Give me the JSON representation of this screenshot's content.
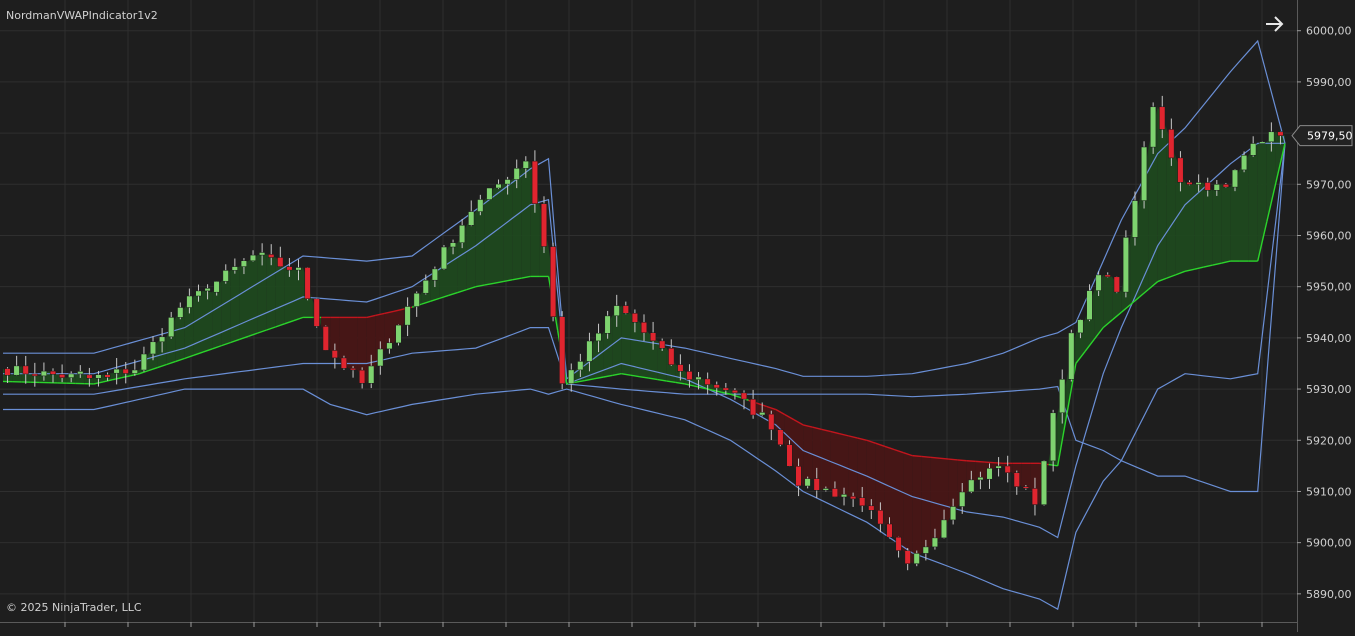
{
  "indicator_label": "NordmanVWAPIndicator1v2",
  "copyright": "© 2025 NinjaTrader, LLC",
  "icons": {
    "scroll_right": "arrow-right-icon"
  },
  "colors": {
    "background": "#1e1e1e",
    "grid": "#2f2f2f",
    "candle_up": "#7ed36f",
    "candle_down": "#e0252f",
    "wick": "#c8c8c8",
    "vwap_line_up": "#2bd42b",
    "vwap_line_down": "#c3151d",
    "band": "#6a8fd6",
    "fill_up": "#1e4a1e",
    "fill_down": "#4a1515",
    "price_label_border": "#8a8a8a"
  },
  "chart_data": {
    "type": "candlestick",
    "title": "",
    "y_axis": {
      "position": "right",
      "range": [
        5884.5,
        6006.0
      ],
      "ticks": [
        "6000,00",
        "5990,00",
        "5980,00",
        "5970,00",
        "5960,00",
        "5950,00",
        "5940,00",
        "5930,00",
        "5920,00",
        "5910,00",
        "5900,00",
        "5890,00"
      ],
      "tick_values": [
        6000,
        5990,
        5980,
        5970,
        5960,
        5950,
        5940,
        5930,
        5920,
        5910,
        5900,
        5890
      ]
    },
    "x_axis": {
      "labels": [],
      "bars": 141
    },
    "grid": true,
    "last_price_label": "5979,50",
    "last_price": 5979.5,
    "keypoints": {
      "close": [
        [
          0,
          5934
        ],
        [
          10,
          5932
        ],
        [
          15,
          5934
        ],
        [
          20,
          5946
        ],
        [
          28,
          5956
        ],
        [
          33,
          5953
        ],
        [
          36,
          5938
        ],
        [
          40,
          5931
        ],
        [
          45,
          5946
        ],
        [
          52,
          5965
        ],
        [
          58,
          5975
        ],
        [
          60,
          5958
        ],
        [
          62,
          5931
        ],
        [
          68,
          5946
        ],
        [
          70,
          5943
        ],
        [
          75,
          5933
        ],
        [
          80,
          5930
        ],
        [
          85,
          5923
        ],
        [
          88,
          5912
        ],
        [
          95,
          5908
        ],
        [
          100,
          5895
        ],
        [
          103,
          5902
        ],
        [
          106,
          5911
        ],
        [
          110,
          5915
        ],
        [
          114,
          5908
        ],
        [
          118,
          5941
        ],
        [
          121,
          5952
        ],
        [
          123,
          5950
        ],
        [
          127,
          5985
        ],
        [
          130,
          5971
        ],
        [
          135,
          5969
        ],
        [
          138,
          5979
        ],
        [
          141,
          5979.5
        ]
      ],
      "vwap": [
        [
          0,
          5931.5
        ],
        [
          10,
          5931
        ],
        [
          15,
          5933
        ],
        [
          20,
          5936
        ],
        [
          33,
          5944
        ],
        [
          36,
          5944
        ],
        [
          40,
          5944
        ],
        [
          45,
          5946
        ],
        [
          52,
          5950
        ],
        [
          58,
          5952
        ],
        [
          60,
          5952
        ],
        [
          62,
          5931
        ],
        [
          68,
          5933
        ],
        [
          75,
          5931
        ],
        [
          80,
          5929
        ],
        [
          85,
          5926
        ],
        [
          88,
          5923
        ],
        [
          95,
          5920
        ],
        [
          100,
          5917
        ],
        [
          106,
          5916
        ],
        [
          110,
          5915.5
        ],
        [
          114,
          5915.5
        ],
        [
          116,
          5915
        ],
        [
          118,
          5935
        ],
        [
          121,
          5942
        ],
        [
          123,
          5945
        ],
        [
          127,
          5951
        ],
        [
          130,
          5953
        ],
        [
          135,
          5955
        ],
        [
          138,
          5955
        ],
        [
          141,
          5978
        ]
      ],
      "band_up1": [
        [
          0,
          5933
        ],
        [
          10,
          5933
        ],
        [
          20,
          5938
        ],
        [
          33,
          5948
        ],
        [
          40,
          5947
        ],
        [
          45,
          5950
        ],
        [
          52,
          5958
        ],
        [
          58,
          5966
        ],
        [
          60,
          5967
        ],
        [
          62,
          5931
        ],
        [
          68,
          5935
        ],
        [
          75,
          5932
        ],
        [
          80,
          5928
        ],
        [
          85,
          5923
        ],
        [
          88,
          5918
        ],
        [
          95,
          5913
        ],
        [
          100,
          5909
        ],
        [
          106,
          5906
        ],
        [
          110,
          5905
        ],
        [
          114,
          5903
        ],
        [
          116,
          5901
        ],
        [
          118,
          5915
        ],
        [
          121,
          5933
        ],
        [
          123,
          5942
        ],
        [
          127,
          5958
        ],
        [
          130,
          5966
        ],
        [
          135,
          5974
        ],
        [
          138,
          5978
        ],
        [
          141,
          5978
        ]
      ],
      "band_up2": [
        [
          0,
          5937
        ],
        [
          10,
          5937
        ],
        [
          20,
          5942
        ],
        [
          33,
          5956
        ],
        [
          40,
          5955
        ],
        [
          45,
          5956
        ],
        [
          52,
          5965
        ],
        [
          58,
          5973
        ],
        [
          60,
          5975
        ],
        [
          62,
          5932
        ],
        [
          68,
          5940
        ],
        [
          75,
          5938
        ],
        [
          80,
          5936
        ],
        [
          85,
          5934
        ],
        [
          88,
          5932.5
        ],
        [
          95,
          5932.5
        ],
        [
          100,
          5933
        ],
        [
          106,
          5935
        ],
        [
          110,
          5937
        ],
        [
          114,
          5940
        ],
        [
          116,
          5941
        ],
        [
          118,
          5943
        ],
        [
          121,
          5955
        ],
        [
          123,
          5963
        ],
        [
          127,
          5976
        ],
        [
          130,
          5981
        ],
        [
          135,
          5992
        ],
        [
          138,
          5998
        ],
        [
          141,
          5978
        ]
      ],
      "band_dn1": [
        [
          0,
          5929
        ],
        [
          10,
          5929
        ],
        [
          20,
          5932
        ],
        [
          33,
          5935
        ],
        [
          36,
          5935
        ],
        [
          40,
          5935
        ],
        [
          45,
          5937
        ],
        [
          52,
          5938
        ],
        [
          58,
          5942
        ],
        [
          60,
          5942
        ],
        [
          62,
          5931
        ],
        [
          68,
          5930
        ],
        [
          75,
          5929
        ],
        [
          80,
          5929
        ],
        [
          85,
          5929
        ],
        [
          88,
          5929
        ],
        [
          95,
          5929
        ],
        [
          100,
          5928.5
        ],
        [
          106,
          5929
        ],
        [
          110,
          5929.5
        ],
        [
          114,
          5930
        ],
        [
          116,
          5930.5
        ],
        [
          118,
          5920
        ],
        [
          121,
          5918
        ],
        [
          123,
          5916
        ],
        [
          127,
          5930
        ],
        [
          130,
          5933
        ],
        [
          135,
          5932
        ],
        [
          138,
          5933
        ],
        [
          141,
          5978
        ]
      ],
      "band_dn2": [
        [
          0,
          5926
        ],
        [
          10,
          5926
        ],
        [
          20,
          5930
        ],
        [
          33,
          5930
        ],
        [
          36,
          5927
        ],
        [
          40,
          5925
        ],
        [
          45,
          5927
        ],
        [
          52,
          5929
        ],
        [
          58,
          5930
        ],
        [
          60,
          5929
        ],
        [
          62,
          5930
        ],
        [
          68,
          5927
        ],
        [
          75,
          5924
        ],
        [
          80,
          5920
        ],
        [
          85,
          5914
        ],
        [
          88,
          5910
        ],
        [
          95,
          5904
        ],
        [
          100,
          5898
        ],
        [
          106,
          5894
        ],
        [
          110,
          5891
        ],
        [
          114,
          5889
        ],
        [
          116,
          5887
        ],
        [
          118,
          5902
        ],
        [
          121,
          5912
        ],
        [
          123,
          5916
        ],
        [
          127,
          5913
        ],
        [
          130,
          5913
        ],
        [
          135,
          5910
        ],
        [
          138,
          5910
        ],
        [
          141,
          5978
        ]
      ]
    }
  }
}
